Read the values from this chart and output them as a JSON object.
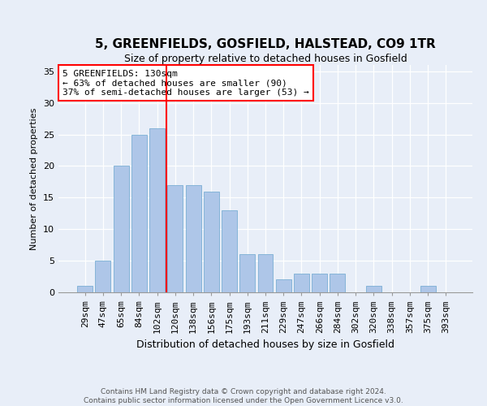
{
  "title": "5, GREENFIELDS, GOSFIELD, HALSTEAD, CO9 1TR",
  "subtitle": "Size of property relative to detached houses in Gosfield",
  "xlabel": "Distribution of detached houses by size in Gosfield",
  "ylabel": "Number of detached properties",
  "categories": [
    "29sqm",
    "47sqm",
    "65sqm",
    "84sqm",
    "102sqm",
    "120sqm",
    "138sqm",
    "156sqm",
    "175sqm",
    "193sqm",
    "211sqm",
    "229sqm",
    "247sqm",
    "266sqm",
    "284sqm",
    "302sqm",
    "320sqm",
    "338sqm",
    "357sqm",
    "375sqm",
    "393sqm"
  ],
  "values": [
    1,
    5,
    20,
    25,
    26,
    17,
    17,
    16,
    13,
    6,
    6,
    2,
    3,
    3,
    3,
    0,
    1,
    0,
    0,
    1,
    0
  ],
  "bar_color": "#aec6e8",
  "bar_edge_color": "#7aafd4",
  "vline_x_index": 4.5,
  "vline_color": "red",
  "annotation_title": "5 GREENFIELDS: 130sqm",
  "annotation_line1": "← 63% of detached houses are smaller (90)",
  "annotation_line2": "37% of semi-detached houses are larger (53) →",
  "annotation_box_color": "white",
  "annotation_box_edge_color": "red",
  "ylim": [
    0,
    36
  ],
  "yticks": [
    0,
    5,
    10,
    15,
    20,
    25,
    30,
    35
  ],
  "footer1": "Contains HM Land Registry data © Crown copyright and database right 2024.",
  "footer2": "Contains public sector information licensed under the Open Government Licence v3.0.",
  "bg_color": "#e8eef8",
  "plot_bg_color": "#e8eef8",
  "title_fontsize": 11,
  "subtitle_fontsize": 9,
  "ann_fontsize": 8,
  "ylabel_fontsize": 8,
  "xlabel_fontsize": 9,
  "tick_fontsize": 8
}
